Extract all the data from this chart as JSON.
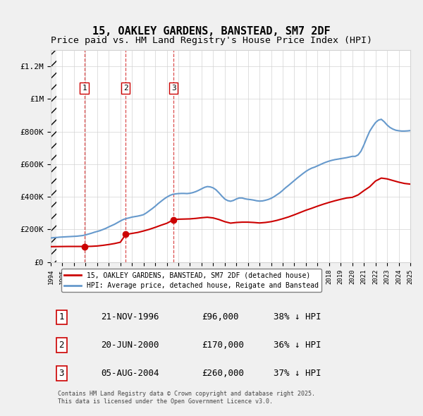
{
  "title_line1": "15, OAKLEY GARDENS, BANSTEAD, SM7 2DF",
  "title_line2": "Price paid vs. HM Land Registry's House Price Index (HPI)",
  "title_fontsize": 11,
  "subtitle_fontsize": 9.5,
  "background_color": "#f0f0f0",
  "plot_bg_color": "#ffffff",
  "ylabel_ticks": [
    "£0",
    "£200K",
    "£400K",
    "£600K",
    "£800K",
    "£1M",
    "£1.2M"
  ],
  "ytick_values": [
    0,
    200000,
    400000,
    600000,
    800000,
    1000000,
    1200000
  ],
  "ylim": [
    0,
    1300000
  ],
  "xmin": 1994,
  "xmax": 2025,
  "sale_dates_num": [
    1996.896,
    2000.463,
    2004.595
  ],
  "sale_prices": [
    96000,
    170000,
    260000
  ],
  "sale_labels": [
    "1",
    "2",
    "3"
  ],
  "sale_dashed_color": "#cc0000",
  "hpi_color": "#6699cc",
  "price_color": "#cc0000",
  "legend_label_price": "15, OAKLEY GARDENS, BANSTEAD, SM7 2DF (detached house)",
  "legend_label_hpi": "HPI: Average price, detached house, Reigate and Banstead",
  "table_entries": [
    {
      "num": "1",
      "date": "21-NOV-1996",
      "price": "£96,000",
      "pct": "38% ↓ HPI"
    },
    {
      "num": "2",
      "date": "20-JUN-2000",
      "price": "£170,000",
      "pct": "36% ↓ HPI"
    },
    {
      "num": "3",
      "date": "05-AUG-2004",
      "price": "£260,000",
      "pct": "37% ↓ HPI"
    }
  ],
  "footnote": "Contains HM Land Registry data © Crown copyright and database right 2025.\nThis data is licensed under the Open Government Licence v3.0.",
  "hpi_x": [
    1994.0,
    1994.25,
    1994.5,
    1994.75,
    1995.0,
    1995.25,
    1995.5,
    1995.75,
    1996.0,
    1996.25,
    1996.5,
    1996.75,
    1997.0,
    1997.25,
    1997.5,
    1997.75,
    1998.0,
    1998.25,
    1998.5,
    1998.75,
    1999.0,
    1999.25,
    1999.5,
    1999.75,
    2000.0,
    2000.25,
    2000.5,
    2000.75,
    2001.0,
    2001.25,
    2001.5,
    2001.75,
    2002.0,
    2002.25,
    2002.5,
    2002.75,
    2003.0,
    2003.25,
    2003.5,
    2003.75,
    2004.0,
    2004.25,
    2004.5,
    2004.75,
    2005.0,
    2005.25,
    2005.5,
    2005.75,
    2006.0,
    2006.25,
    2006.5,
    2006.75,
    2007.0,
    2007.25,
    2007.5,
    2007.75,
    2008.0,
    2008.25,
    2008.5,
    2008.75,
    2009.0,
    2009.25,
    2009.5,
    2009.75,
    2010.0,
    2010.25,
    2010.5,
    2010.75,
    2011.0,
    2011.25,
    2011.5,
    2011.75,
    2012.0,
    2012.25,
    2012.5,
    2012.75,
    2013.0,
    2013.25,
    2013.5,
    2013.75,
    2014.0,
    2014.25,
    2014.5,
    2014.75,
    2015.0,
    2015.25,
    2015.5,
    2015.75,
    2016.0,
    2016.25,
    2016.5,
    2016.75,
    2017.0,
    2017.25,
    2017.5,
    2017.75,
    2018.0,
    2018.25,
    2018.5,
    2018.75,
    2019.0,
    2019.25,
    2019.5,
    2019.75,
    2020.0,
    2020.25,
    2020.5,
    2020.75,
    2021.0,
    2021.25,
    2021.5,
    2021.75,
    2022.0,
    2022.25,
    2022.5,
    2022.75,
    2023.0,
    2023.25,
    2023.5,
    2023.75,
    2024.0,
    2024.25,
    2024.5,
    2024.75,
    2025.0
  ],
  "hpi_y": [
    148000,
    150000,
    151000,
    153000,
    154000,
    155000,
    156000,
    157000,
    158000,
    159000,
    161000,
    163000,
    167000,
    172000,
    177000,
    183000,
    188000,
    193000,
    200000,
    207000,
    216000,
    224000,
    232000,
    242000,
    252000,
    261000,
    267000,
    271000,
    276000,
    279000,
    282000,
    286000,
    291000,
    302000,
    315000,
    328000,
    342000,
    358000,
    372000,
    386000,
    398000,
    408000,
    415000,
    418000,
    420000,
    421000,
    421000,
    420000,
    422000,
    426000,
    432000,
    440000,
    449000,
    458000,
    463000,
    461000,
    455000,
    443000,
    425000,
    405000,
    387000,
    377000,
    373000,
    378000,
    387000,
    393000,
    393000,
    388000,
    385000,
    383000,
    380000,
    376000,
    374000,
    375000,
    379000,
    384000,
    391000,
    401000,
    413000,
    425000,
    440000,
    456000,
    470000,
    485000,
    500000,
    515000,
    529000,
    543000,
    556000,
    567000,
    576000,
    582000,
    590000,
    598000,
    606000,
    613000,
    619000,
    624000,
    628000,
    631000,
    634000,
    637000,
    640000,
    644000,
    648000,
    648000,
    657000,
    680000,
    718000,
    762000,
    802000,
    830000,
    855000,
    870000,
    875000,
    860000,
    840000,
    825000,
    815000,
    808000,
    805000,
    803000,
    803000,
    804000,
    806000
  ],
  "price_x": [
    1994.0,
    1994.25,
    1994.5,
    1994.75,
    1995.0,
    1995.25,
    1995.5,
    1995.75,
    1996.0,
    1996.25,
    1996.5,
    1996.75,
    1996.896,
    1997.0,
    1997.5,
    1998.0,
    1998.5,
    1999.0,
    1999.5,
    2000.0,
    2000.463,
    2000.75,
    2001.0,
    2001.5,
    2002.0,
    2002.5,
    2003.0,
    2003.5,
    2004.0,
    2004.595,
    2004.75,
    2005.0,
    2005.5,
    2006.0,
    2006.5,
    2007.0,
    2007.5,
    2008.0,
    2008.5,
    2009.0,
    2009.5,
    2010.0,
    2010.5,
    2011.0,
    2011.5,
    2012.0,
    2012.5,
    2013.0,
    2013.5,
    2014.0,
    2014.5,
    2015.0,
    2015.5,
    2016.0,
    2016.5,
    2017.0,
    2017.5,
    2018.0,
    2018.5,
    2019.0,
    2019.5,
    2020.0,
    2020.5,
    2021.0,
    2021.5,
    2022.0,
    2022.5,
    2023.0,
    2023.5,
    2024.0,
    2024.5,
    2025.0
  ],
  "price_y": [
    95000,
    95200,
    95400,
    95600,
    95800,
    96000,
    96200,
    96200,
    96200,
    96200,
    96200,
    96200,
    96000,
    96200,
    97000,
    99000,
    103000,
    108000,
    114000,
    122000,
    170000,
    173000,
    176000,
    182000,
    191000,
    201000,
    213000,
    226000,
    238000,
    260000,
    262000,
    263000,
    264000,
    265000,
    268000,
    272000,
    275000,
    271000,
    261000,
    248000,
    239000,
    243000,
    245000,
    245000,
    243000,
    240000,
    243000,
    248000,
    256000,
    266000,
    277000,
    290000,
    304000,
    318000,
    330000,
    343000,
    355000,
    366000,
    376000,
    385000,
    393000,
    397000,
    412000,
    438000,
    462000,
    497000,
    515000,
    510000,
    500000,
    490000,
    482000,
    478000
  ]
}
